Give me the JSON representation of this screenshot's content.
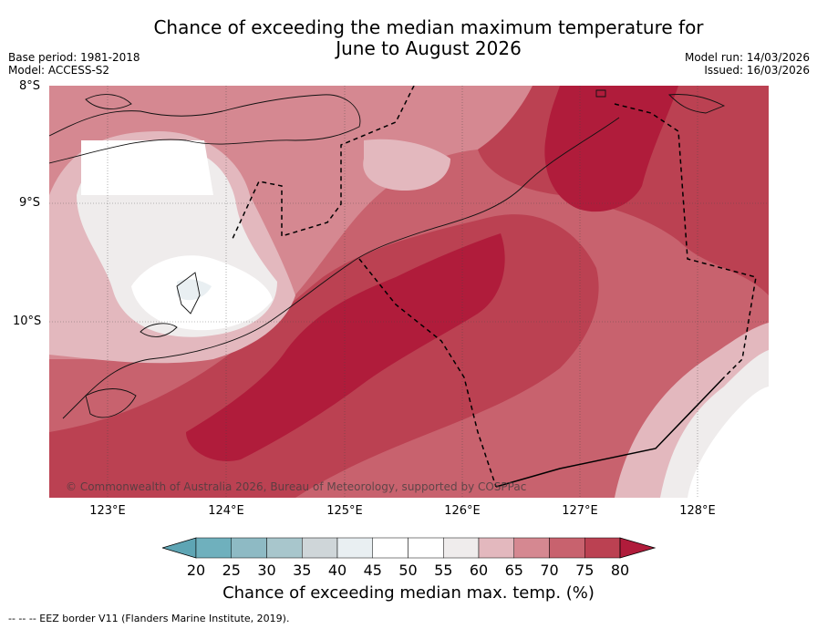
{
  "title_line1": "Chance of exceeding the median maximum temperature for",
  "title_line2": "June to August 2026",
  "base_period": "Base period: 1981-2018",
  "model": "Model: ACCESS-S2",
  "model_run": "Model run: 14/03/2026",
  "issued": "Issued: 16/03/2026",
  "lat_labels": [
    "8°S",
    "9°S",
    "10°S"
  ],
  "lon_labels": [
    "123°E",
    "124°E",
    "125°E",
    "126°E",
    "127°E",
    "128°E"
  ],
  "copyright": "© Commonwealth of Australia 2026, Bureau of Meteorology, supported by COSPPac",
  "colorbar": {
    "ticks": [
      "20",
      "25",
      "30",
      "35",
      "40",
      "45",
      "50",
      "55",
      "60",
      "65",
      "70",
      "75",
      "80"
    ],
    "label": "Chance of exceeding median max. temp. (%)",
    "colors": [
      "#5ea5b4",
      "#6fb0bd",
      "#8ebac4",
      "#a8c6cc",
      "#cfd6d9",
      "#e9eff2",
      "#ffffff",
      "#ffffff",
      "#efecec",
      "#e3b8be",
      "#d58891",
      "#c8626e",
      "#bb4152",
      "#b01c3b"
    ]
  },
  "footnote": "-- -- -- EEZ border V11 (Flanders Marine Institute, 2019)."
}
